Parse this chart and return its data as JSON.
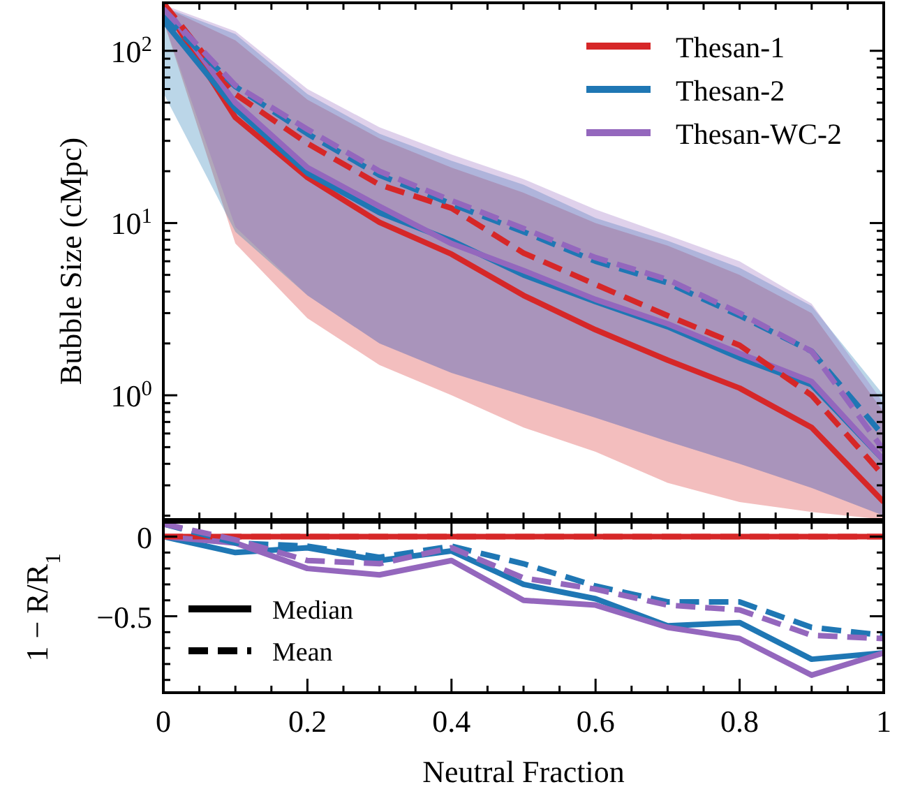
{
  "chart_data": [
    {
      "type": "line",
      "ylabel": "Bubble Size (cMpc)",
      "log": true,
      "legend": "top right",
      "tick_labels": "y",
      "xlim": [
        0,
        1
      ],
      "ylim": [
        0.19,
        190
      ],
      "x": [
        0,
        0.1,
        0.2,
        0.3,
        0.4,
        0.5,
        0.6,
        0.7,
        0.8,
        0.9,
        1
      ],
      "xticks": [
        {
          "value": 0,
          "label": null
        },
        {
          "value": 0.05,
          "label": null
        },
        {
          "value": 0.1,
          "label": null
        },
        {
          "value": 0.15,
          "label": null
        },
        {
          "value": 0.2,
          "label": null
        },
        {
          "value": 0.25,
          "label": null
        },
        {
          "value": 0.3,
          "label": null
        },
        {
          "value": 0.35,
          "label": null
        },
        {
          "value": 0.4,
          "label": null
        },
        {
          "value": 0.45,
          "label": null
        },
        {
          "value": 0.5,
          "label": null
        },
        {
          "value": 0.55,
          "label": null
        },
        {
          "value": 0.6,
          "label": null
        },
        {
          "value": 0.65,
          "label": null
        },
        {
          "value": 0.7,
          "label": null
        },
        {
          "value": 0.75,
          "label": null
        },
        {
          "value": 0.8,
          "label": null
        },
        {
          "value": 0.85,
          "label": null
        },
        {
          "value": 0.9,
          "label": null
        },
        {
          "value": 0.95,
          "label": null
        },
        {
          "value": 1,
          "label": null
        }
      ],
      "yticks": [
        {
          "value": 0.2,
          "label": null
        },
        {
          "value": 0.3,
          "label": null
        },
        {
          "value": 0.4,
          "label": null
        },
        {
          "value": 0.5,
          "label": null
        },
        {
          "value": 0.6,
          "label": null
        },
        {
          "value": 0.7,
          "label": null
        },
        {
          "value": 0.8,
          "label": null
        },
        {
          "value": 0.9,
          "label": null
        },
        {
          "value": 1,
          "label": "10$^{0}$"
        },
        {
          "value": 2,
          "label": null
        },
        {
          "value": 3,
          "label": null
        },
        {
          "value": 4,
          "label": null
        },
        {
          "value": 5,
          "label": null
        },
        {
          "value": 6,
          "label": null
        },
        {
          "value": 7,
          "label": null
        },
        {
          "value": 8,
          "label": null
        },
        {
          "value": 9,
          "label": null
        },
        {
          "value": 10,
          "label": "10$^{1}$"
        },
        {
          "value": 20,
          "label": null
        },
        {
          "value": 30,
          "label": null
        },
        {
          "value": 40,
          "label": null
        },
        {
          "value": 50,
          "label": null
        },
        {
          "value": 60,
          "label": null
        },
        {
          "value": 70,
          "label": null
        },
        {
          "value": 80,
          "label": null
        },
        {
          "value": 90,
          "label": null
        },
        {
          "value": 100,
          "label": "10$^{2}$"
        }
      ],
      "series": [
        {
          "name": "Thesan-1",
          "color": "#d62728",
          "line_style": "solid",
          "values": [
            185,
            41,
            18.4,
            10.1,
            6.6,
            3.8,
            2.4,
            1.6,
            1.1,
            0.65,
            0.24
          ],
          "lower": [
            150,
            7.6,
            2.8,
            1.5,
            1.0,
            0.65,
            0.47,
            0.31,
            0.24,
            0.21,
            0.19
          ],
          "upper": [
            180,
            115,
            52,
            31,
            21,
            15,
            10,
            7.4,
            5.0,
            3.0,
            0.8
          ]
        },
        {
          "name": "Thesan-2",
          "color": "#1f77b4",
          "line_style": "solid",
          "values": [
            150,
            46,
            19.5,
            11.5,
            7.9,
            5.0,
            3.5,
            2.5,
            1.65,
            1.15,
            0.42
          ],
          "lower": [
            57,
            8.9,
            3.8,
            2.0,
            1.35,
            1.0,
            0.74,
            0.54,
            0.4,
            0.29,
            0.2
          ],
          "upper": [
            180,
            125,
            56,
            33,
            23,
            16.7,
            10.7,
            7.9,
            5.5,
            3.3,
            1.0
          ]
        },
        {
          "name": "Thesan-WC-2",
          "color": "#9467bd",
          "line_style": "solid",
          "values": [
            185,
            50,
            21,
            12.5,
            7.6,
            5.3,
            3.6,
            2.6,
            1.75,
            1.2,
            0.42
          ],
          "lower": [
            150,
            9.5,
            3.8,
            2.0,
            1.35,
            1.0,
            0.74,
            0.54,
            0.4,
            0.29,
            0.2
          ],
          "upper": [
            185,
            130,
            60,
            36,
            25,
            18,
            12,
            8.5,
            6.0,
            3.4,
            0.9
          ]
        },
        {
          "color": "#d62728",
          "line_style": "dashed",
          "values": [
            190,
            56,
            29,
            16.7,
            12.2,
            6.7,
            4.4,
            2.9,
            1.95,
            1.0,
            0.34
          ]
        },
        {
          "color": "#1f77b4",
          "line_style": "dashed",
          "values": [
            160,
            62,
            33,
            19,
            12.9,
            8.9,
            6.0,
            4.5,
            2.9,
            1.8,
            0.58
          ]
        },
        {
          "color": "#9467bd",
          "line_style": "dashed",
          "values": [
            175,
            63,
            35,
            20,
            13.5,
            9.3,
            6.3,
            4.7,
            3.0,
            1.8,
            0.48
          ]
        }
      ]
    },
    {
      "type": "line",
      "xlabel": "Neutral Fraction",
      "ylabel": "1 − R/R$_{1}$",
      "xlim": [
        0,
        1
      ],
      "ylim": [
        -0.98,
        0.09
      ],
      "x": [
        0,
        0.1,
        0.2,
        0.3,
        0.4,
        0.5,
        0.6,
        0.7,
        0.8,
        0.9,
        1
      ],
      "annotations": [
        "Median",
        "Mean"
      ],
      "xticks": [
        0,
        {
          "value": 0.05,
          "label": null
        },
        {
          "value": 0.1,
          "label": null
        },
        {
          "value": 0.15,
          "label": null
        },
        0.2,
        {
          "value": 0.25,
          "label": null
        },
        {
          "value": 0.3,
          "label": null
        },
        {
          "value": 0.35,
          "label": null
        },
        0.4,
        {
          "value": 0.45,
          "label": null
        },
        {
          "value": 0.5,
          "label": null
        },
        {
          "value": 0.55,
          "label": null
        },
        0.6,
        {
          "value": 0.65,
          "label": null
        },
        {
          "value": 0.7,
          "label": null
        },
        {
          "value": 0.75,
          "label": null
        },
        0.8,
        {
          "value": 0.85,
          "label": null
        },
        {
          "value": 0.9,
          "label": null
        },
        {
          "value": 0.95,
          "label": null
        },
        1
      ],
      "yticks": [
        {
          "value": -0.9,
          "label": null
        },
        {
          "value": -0.8,
          "label": null
        },
        {
          "value": -0.7,
          "label": null
        },
        {
          "value": -0.6,
          "label": null
        },
        {
          "value": -0.5,
          "label": "−0.5"
        },
        {
          "value": -0.4,
          "label": null
        },
        {
          "value": -0.3,
          "label": null
        },
        {
          "value": -0.2,
          "label": null
        },
        {
          "value": -0.1,
          "label": null
        },
        0
      ],
      "series": [
        {
          "color": "#d62728",
          "line_style": "solid",
          "values": [
            0,
            0,
            0,
            0,
            0,
            0,
            0,
            0,
            0,
            0,
            0
          ]
        },
        {
          "color": "#1f77b4",
          "line_style": "solid",
          "values": [
            0,
            -0.1,
            -0.07,
            -0.15,
            -0.09,
            -0.3,
            -0.39,
            -0.56,
            -0.54,
            -0.77,
            -0.73
          ]
        },
        {
          "color": "#9467bd",
          "line_style": "solid",
          "values": [
            0,
            -0.04,
            -0.2,
            -0.24,
            -0.15,
            -0.4,
            -0.43,
            -0.57,
            -0.64,
            -0.87,
            -0.73
          ]
        },
        {
          "color": "#d62728",
          "line_style": "dashed",
          "values": [
            0,
            0,
            0,
            0,
            0,
            0,
            0,
            0,
            0,
            0,
            0
          ]
        },
        {
          "color": "#1f77b4",
          "line_style": "dashed",
          "values": [
            0.08,
            -0.04,
            -0.06,
            -0.13,
            -0.06,
            -0.17,
            -0.31,
            -0.41,
            -0.41,
            -0.57,
            -0.62
          ]
        },
        {
          "color": "#9467bd",
          "line_style": "dashed",
          "values": [
            0.08,
            -0.02,
            -0.15,
            -0.17,
            -0.07,
            -0.26,
            -0.33,
            -0.43,
            -0.46,
            -0.62,
            -0.64
          ]
        }
      ]
    }
  ]
}
